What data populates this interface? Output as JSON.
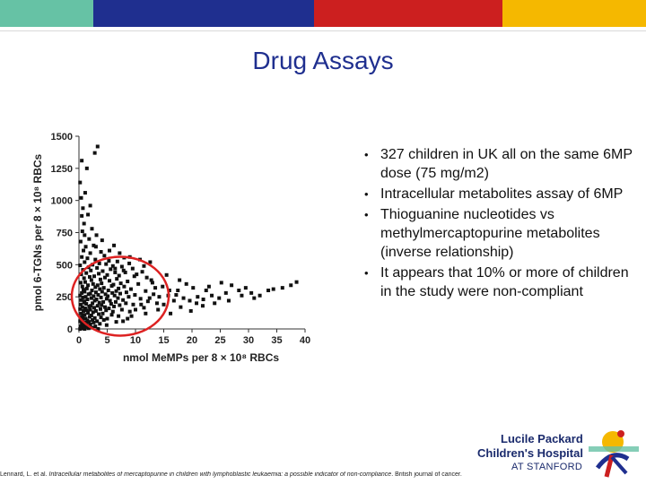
{
  "header": {
    "bar_colors": [
      "#66c2a5",
      "#1f2f8f",
      "#1f2f8f",
      "#cc1f1f",
      "#f5b800"
    ],
    "title": "Drug Assays"
  },
  "bullets": [
    "327 children in UK all on the same 6MP dose (75 mg/m2)",
    "Intracellular metabolites assay of 6MP",
    "Thioguanine nucleotides vs methylmercaptopurine metabolites (inverse relationship)",
    "It appears that 10% or more of children in the study were non-compliant"
  ],
  "citation": {
    "author": "Lennard, L. et al.",
    "title": "Intracellular metabolites of mercaptopurine in children with lymphoblastic leukaemia: a possible indicator of non-compliance",
    "journal": ". British journal of cancer."
  },
  "logo": {
    "line1": "Lucile Packard",
    "line2": "Children's Hospital",
    "line3": "AT STANFORD"
  },
  "chart_data": {
    "type": "scatter",
    "xlabel": "nmol MeMPs per 8 × 10⁸ RBCs",
    "ylabel": "pmol 6-TGNs per 8 × 10⁸ RBCs",
    "xlim": [
      0,
      40
    ],
    "ylim": [
      0,
      1500
    ],
    "x_ticks": [
      "0",
      "5",
      "10",
      "15",
      "20",
      "25",
      "30",
      "35",
      "40"
    ],
    "y_ticks": [
      "0",
      "250",
      "500",
      "750",
      "1000",
      "1250",
      "1500"
    ],
    "annotation": "red circle around cluster at x 0–15, y 0–550",
    "annotation_color": "#dd2222",
    "points": [
      [
        3.3,
        1420
      ],
      [
        2.8,
        1370
      ],
      [
        0.5,
        1310
      ],
      [
        1.4,
        1250
      ],
      [
        0.2,
        1140
      ],
      [
        1.1,
        1060
      ],
      [
        0.4,
        1020
      ],
      [
        1.6,
        890
      ],
      [
        0.9,
        820
      ],
      [
        2.3,
        780
      ],
      [
        0.6,
        760
      ],
      [
        3.1,
        730
      ],
      [
        1.8,
        700
      ],
      [
        0.3,
        680
      ],
      [
        2.6,
        650
      ],
      [
        1.2,
        640
      ],
      [
        0.8,
        610
      ],
      [
        3.9,
        600
      ],
      [
        2.0,
        590
      ],
      [
        4.5,
        570
      ],
      [
        0.5,
        560
      ],
      [
        1.5,
        550
      ],
      [
        2.9,
        540
      ],
      [
        5.3,
        530
      ],
      [
        6.8,
        525
      ],
      [
        1.0,
        520
      ],
      [
        3.6,
        510
      ],
      [
        8.9,
        510
      ],
      [
        4.8,
        505
      ],
      [
        2.4,
        500
      ],
      [
        0.2,
        495
      ],
      [
        6.0,
        490
      ],
      [
        7.6,
        485
      ],
      [
        1.7,
        480
      ],
      [
        3.2,
        475
      ],
      [
        9.5,
        470
      ],
      [
        5.6,
        465
      ],
      [
        0.7,
        460
      ],
      [
        2.1,
        455
      ],
      [
        4.2,
        450
      ],
      [
        11.2,
        445
      ],
      [
        6.4,
        440
      ],
      [
        8.2,
        440
      ],
      [
        1.3,
        435
      ],
      [
        3.5,
        430
      ],
      [
        0.4,
        425
      ],
      [
        5.0,
        420
      ],
      [
        7.1,
        415
      ],
      [
        2.7,
        410
      ],
      [
        9.8,
        410
      ],
      [
        1.9,
        405
      ],
      [
        4.6,
        400
      ],
      [
        0.9,
        395
      ],
      [
        6.7,
        390
      ],
      [
        3.8,
        385
      ],
      [
        12.8,
        380
      ],
      [
        2.2,
        380
      ],
      [
        5.4,
        375
      ],
      [
        8.6,
        370
      ],
      [
        1.1,
        365
      ],
      [
        0.3,
        360
      ],
      [
        4.0,
        355
      ],
      [
        7.4,
        355
      ],
      [
        2.5,
        350
      ],
      [
        10.5,
        350
      ],
      [
        6.1,
        345
      ],
      [
        3.3,
        340
      ],
      [
        1.6,
        340
      ],
      [
        5.8,
        335
      ],
      [
        0.6,
        330
      ],
      [
        8.0,
        330
      ],
      [
        2.9,
        325
      ],
      [
        4.4,
        320
      ],
      [
        13.5,
        320
      ],
      [
        7.0,
        315
      ],
      [
        1.4,
        315
      ],
      [
        3.7,
        310
      ],
      [
        9.2,
        310
      ],
      [
        0.8,
        305
      ],
      [
        5.2,
        300
      ],
      [
        2.3,
        300
      ],
      [
        6.6,
        295
      ],
      [
        11.8,
        295
      ],
      [
        4.1,
        290
      ],
      [
        1.0,
        290
      ],
      [
        8.4,
        285
      ],
      [
        3.0,
        285
      ],
      [
        0.5,
        280
      ],
      [
        5.9,
        280
      ],
      [
        2.0,
        275
      ],
      [
        7.3,
        275
      ],
      [
        4.7,
        270
      ],
      [
        1.7,
        270
      ],
      [
        9.9,
        265
      ],
      [
        3.4,
        265
      ],
      [
        0.2,
        260
      ],
      [
        6.3,
        260
      ],
      [
        2.6,
        255
      ],
      [
        5.1,
        255
      ],
      [
        14.2,
        250
      ],
      [
        1.2,
        250
      ],
      [
        8.8,
        250
      ],
      [
        3.9,
        245
      ],
      [
        0.7,
        245
      ],
      [
        6.9,
        240
      ],
      [
        2.2,
        240
      ],
      [
        4.9,
        235
      ],
      [
        10.9,
        235
      ],
      [
        1.5,
        230
      ],
      [
        3.1,
        230
      ],
      [
        7.8,
        225
      ],
      [
        0.4,
        225
      ],
      [
        5.5,
        220
      ],
      [
        2.8,
        220
      ],
      [
        12.2,
        215
      ],
      [
        1.0,
        215
      ],
      [
        4.3,
        210
      ],
      [
        6.5,
        210
      ],
      [
        0.9,
        205
      ],
      [
        3.6,
        205
      ],
      [
        8.3,
        200
      ],
      [
        2.4,
        200
      ],
      [
        5.7,
        195
      ],
      [
        1.3,
        195
      ],
      [
        9.6,
        190
      ],
      [
        0.3,
        190
      ],
      [
        4.0,
        185
      ],
      [
        7.2,
        185
      ],
      [
        2.1,
        180
      ],
      [
        3.3,
        180
      ],
      [
        1.8,
        175
      ],
      [
        6.2,
        175
      ],
      [
        0.6,
        170
      ],
      [
        4.6,
        170
      ],
      [
        11.5,
        165
      ],
      [
        2.7,
        165
      ],
      [
        1.1,
        160
      ],
      [
        5.3,
        160
      ],
      [
        3.8,
        155
      ],
      [
        0.2,
        155
      ],
      [
        7.6,
        150
      ],
      [
        2.0,
        150
      ],
      [
        4.8,
        145
      ],
      [
        1.4,
        145
      ],
      [
        0.8,
        140
      ],
      [
        3.0,
        140
      ],
      [
        6.0,
        135
      ],
      [
        9.0,
        135
      ],
      [
        2.5,
        130
      ],
      [
        1.6,
        125
      ],
      [
        0.4,
        120
      ],
      [
        4.2,
        120
      ],
      [
        3.5,
        115
      ],
      [
        1.0,
        110
      ],
      [
        5.8,
        110
      ],
      [
        2.2,
        105
      ],
      [
        0.7,
        100
      ],
      [
        7.0,
        100
      ],
      [
        1.9,
        95
      ],
      [
        3.9,
        90
      ],
      [
        0.3,
        90
      ],
      [
        2.8,
        85
      ],
      [
        1.2,
        80
      ],
      [
        5.0,
        80
      ],
      [
        0.6,
        75
      ],
      [
        2.4,
        70
      ],
      [
        4.4,
        70
      ],
      [
        1.5,
        65
      ],
      [
        0.2,
        60
      ],
      [
        3.2,
        60
      ],
      [
        1.8,
        55
      ],
      [
        0.9,
        50
      ],
      [
        2.6,
        50
      ],
      [
        0.5,
        45
      ],
      [
        3.7,
        40
      ],
      [
        1.3,
        40
      ],
      [
        2.0,
        35
      ],
      [
        0.8,
        30
      ],
      [
        4.9,
        30
      ],
      [
        1.6,
        25
      ],
      [
        0.3,
        20
      ],
      [
        2.9,
        20
      ],
      [
        1.1,
        15
      ],
      [
        0.6,
        10
      ],
      [
        2.3,
        10
      ],
      [
        1.7,
        5
      ],
      [
        0.4,
        5
      ],
      [
        3.4,
        0
      ],
      [
        1.0,
        0
      ],
      [
        0.2,
        0
      ],
      [
        6.4,
        470
      ],
      [
        7.9,
        455
      ],
      [
        10.2,
        425
      ],
      [
        12.0,
        400
      ],
      [
        13.0,
        360
      ],
      [
        14.8,
        330
      ],
      [
        16.0,
        300
      ],
      [
        17.2,
        265
      ],
      [
        18.5,
        240
      ],
      [
        19.6,
        220
      ],
      [
        20.8,
        200
      ],
      [
        21.9,
        180
      ],
      [
        15.5,
        420
      ],
      [
        17.8,
        380
      ],
      [
        19.0,
        350
      ],
      [
        20.2,
        320
      ],
      [
        22.5,
        300
      ],
      [
        23.5,
        260
      ],
      [
        24.8,
        240
      ],
      [
        26.0,
        280
      ],
      [
        25.2,
        360
      ],
      [
        27.0,
        340
      ],
      [
        28.3,
        300
      ],
      [
        29.5,
        320
      ],
      [
        30.5,
        280
      ],
      [
        32.0,
        260
      ],
      [
        33.5,
        300
      ],
      [
        34.4,
        310
      ],
      [
        36.0,
        320
      ],
      [
        38.5,
        365
      ],
      [
        37.5,
        340
      ],
      [
        18.0,
        170
      ],
      [
        16.8,
        220
      ],
      [
        21.0,
        250
      ],
      [
        23.0,
        330
      ],
      [
        15.0,
        190
      ],
      [
        14.0,
        150
      ],
      [
        16.2,
        120
      ],
      [
        19.8,
        140
      ],
      [
        13.2,
        270
      ],
      [
        12.5,
        240
      ],
      [
        11.0,
        190
      ],
      [
        10.0,
        150
      ],
      [
        11.8,
        120
      ],
      [
        9.3,
        100
      ],
      [
        8.6,
        80
      ],
      [
        7.8,
        60
      ],
      [
        6.6,
        55
      ],
      [
        13.8,
        200
      ],
      [
        15.8,
        260
      ],
      [
        17.5,
        300
      ],
      [
        22.0,
        230
      ],
      [
        24.0,
        200
      ],
      [
        26.5,
        220
      ],
      [
        31.0,
        240
      ],
      [
        28.8,
        260
      ],
      [
        5.4,
        610
      ],
      [
        7.2,
        590
      ],
      [
        8.0,
        555
      ],
      [
        3.0,
        640
      ],
      [
        4.1,
        690
      ],
      [
        6.2,
        650
      ],
      [
        1.0,
        730
      ],
      [
        0.5,
        880
      ],
      [
        2.0,
        960
      ],
      [
        0.7,
        940
      ],
      [
        10.8,
        540
      ],
      [
        12.6,
        520
      ],
      [
        9.0,
        560
      ],
      [
        11.5,
        490
      ]
    ]
  }
}
